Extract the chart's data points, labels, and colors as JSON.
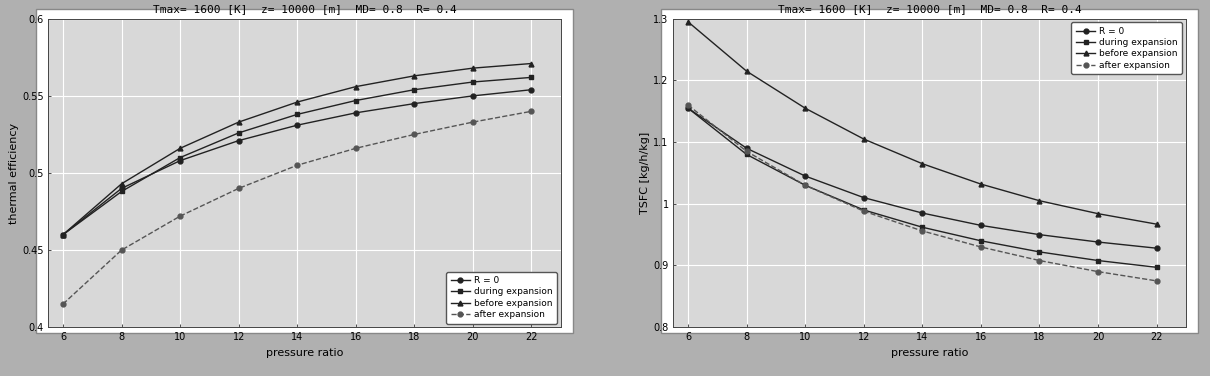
{
  "title": "Tmax= 1600 [K]  z= 10000 [m]  MD= 0.8  R= 0.4",
  "pressure_ratio": [
    6,
    8,
    10,
    12,
    14,
    16,
    18,
    20,
    22
  ],
  "chart1": {
    "ylabel": "thermal efficiency",
    "xlabel": "pressure ratio",
    "ylim": [
      0.4,
      0.6
    ],
    "yticks": [
      0.4,
      0.45,
      0.5,
      0.55,
      0.6
    ],
    "ytick_labels": [
      "0.4",
      "0.45",
      "0.5",
      "0.55",
      "0.6"
    ],
    "series": [
      {
        "label": "R = 0",
        "marker": "o",
        "data": [
          0.46,
          0.49,
          0.508,
          0.521,
          0.531,
          0.539,
          0.545,
          0.55,
          0.554
        ],
        "color": "#222222",
        "linestyle": "-"
      },
      {
        "label": "during expansion",
        "marker": "s",
        "data": [
          0.46,
          0.488,
          0.51,
          0.526,
          0.538,
          0.547,
          0.554,
          0.559,
          0.562
        ],
        "color": "#222222",
        "linestyle": "-"
      },
      {
        "label": "before expansion",
        "marker": "^",
        "data": [
          0.46,
          0.493,
          0.516,
          0.533,
          0.546,
          0.556,
          0.563,
          0.568,
          0.571
        ],
        "color": "#222222",
        "linestyle": "-"
      },
      {
        "label": "after expansion",
        "marker": "o",
        "data": [
          0.415,
          0.45,
          0.472,
          0.49,
          0.505,
          0.516,
          0.525,
          0.533,
          0.54
        ],
        "color": "#555555",
        "linestyle": "--"
      }
    ]
  },
  "chart2": {
    "ylabel": "TSFC [kg/h/kg]",
    "xlabel": "pressure ratio",
    "ylim": [
      0.8,
      1.3
    ],
    "yticks": [
      0.8,
      0.9,
      1.0,
      1.1,
      1.2,
      1.3
    ],
    "ytick_labels": [
      "0.8",
      "0.9",
      "1",
      "1.1",
      "1.2",
      "1.3"
    ],
    "series": [
      {
        "label": "R = 0",
        "marker": "o",
        "data": [
          1.155,
          1.09,
          1.045,
          1.01,
          0.985,
          0.965,
          0.95,
          0.938,
          0.928
        ],
        "color": "#222222",
        "linestyle": "-"
      },
      {
        "label": "during expansion",
        "marker": "s",
        "data": [
          1.155,
          1.08,
          1.03,
          0.99,
          0.962,
          0.94,
          0.922,
          0.908,
          0.897
        ],
        "color": "#222222",
        "linestyle": "-"
      },
      {
        "label": "before expansion",
        "marker": "^",
        "data": [
          1.295,
          1.215,
          1.155,
          1.105,
          1.065,
          1.032,
          1.005,
          0.984,
          0.967
        ],
        "color": "#222222",
        "linestyle": "-"
      },
      {
        "label": "after expansion",
        "marker": "o",
        "data": [
          1.16,
          1.085,
          1.03,
          0.988,
          0.956,
          0.93,
          0.908,
          0.89,
          0.875
        ],
        "color": "#555555",
        "linestyle": "--"
      }
    ]
  },
  "panel_bg": "#f0f0f0",
  "plot_bg": "#d8d8d8",
  "grid_color": "#ffffff",
  "fig_bg": "#b0b0b0"
}
